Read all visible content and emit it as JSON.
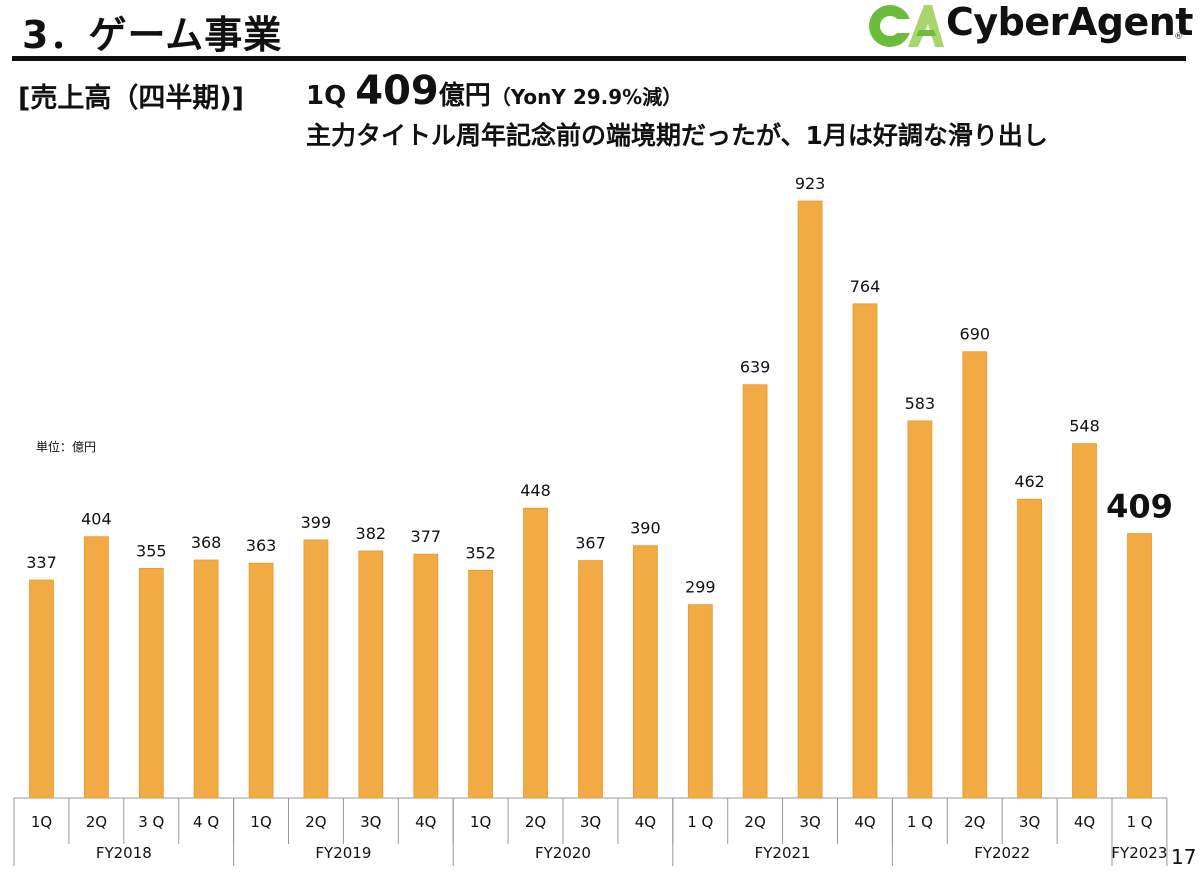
{
  "header": {
    "title": "3．ゲーム事業",
    "logo_text": "CyberAgent",
    "logo_reg": "®",
    "logo_mark": "CA"
  },
  "subheader": {
    "section_label": "[売上高（四半期)]",
    "headline_q": "1Q ",
    "headline_value": "409",
    "headline_unit": "億円",
    "headline_yoy": "（YonY 29.9%減）",
    "headline_line2": "主力タイトル周年記念前の端境期だったが、1月は好調な滑り出し"
  },
  "unit_note": "単位：億円",
  "page_number": "17",
  "colors": {
    "bar": "#F2AA45",
    "bar_edge": "#E89A2E",
    "logo_green": "#6CBB3C",
    "logo_light": "#A9D66B",
    "grid": "#999999"
  },
  "chart_data": {
    "type": "bar",
    "unit": "億円",
    "groups": [
      {
        "label": "FY2018",
        "quarters": [
          "1Q",
          "2Q",
          "3 Q",
          "4 Q"
        ],
        "values": [
          337,
          404,
          355,
          368
        ]
      },
      {
        "label": "FY2019",
        "quarters": [
          "1Q",
          "2Q",
          "3Q",
          "4Q"
        ],
        "values": [
          363,
          399,
          382,
          377
        ]
      },
      {
        "label": "FY2020",
        "quarters": [
          "1Q",
          "2Q",
          "3Q",
          "4Q"
        ],
        "values": [
          352,
          448,
          367,
          390
        ]
      },
      {
        "label": "FY2021",
        "quarters": [
          "1 Q",
          "2Q",
          "3Q",
          "4Q"
        ],
        "values": [
          299,
          639,
          923,
          764
        ]
      },
      {
        "label": "FY2022",
        "quarters": [
          "1 Q",
          "2Q",
          "3Q",
          "4Q"
        ],
        "values": [
          583,
          690,
          462,
          548
        ]
      },
      {
        "label": "FY2023",
        "quarters": [
          "1 Q"
        ],
        "values": [
          409
        ]
      }
    ],
    "highlight_last": true,
    "ylim": [
      0,
      923
    ]
  }
}
